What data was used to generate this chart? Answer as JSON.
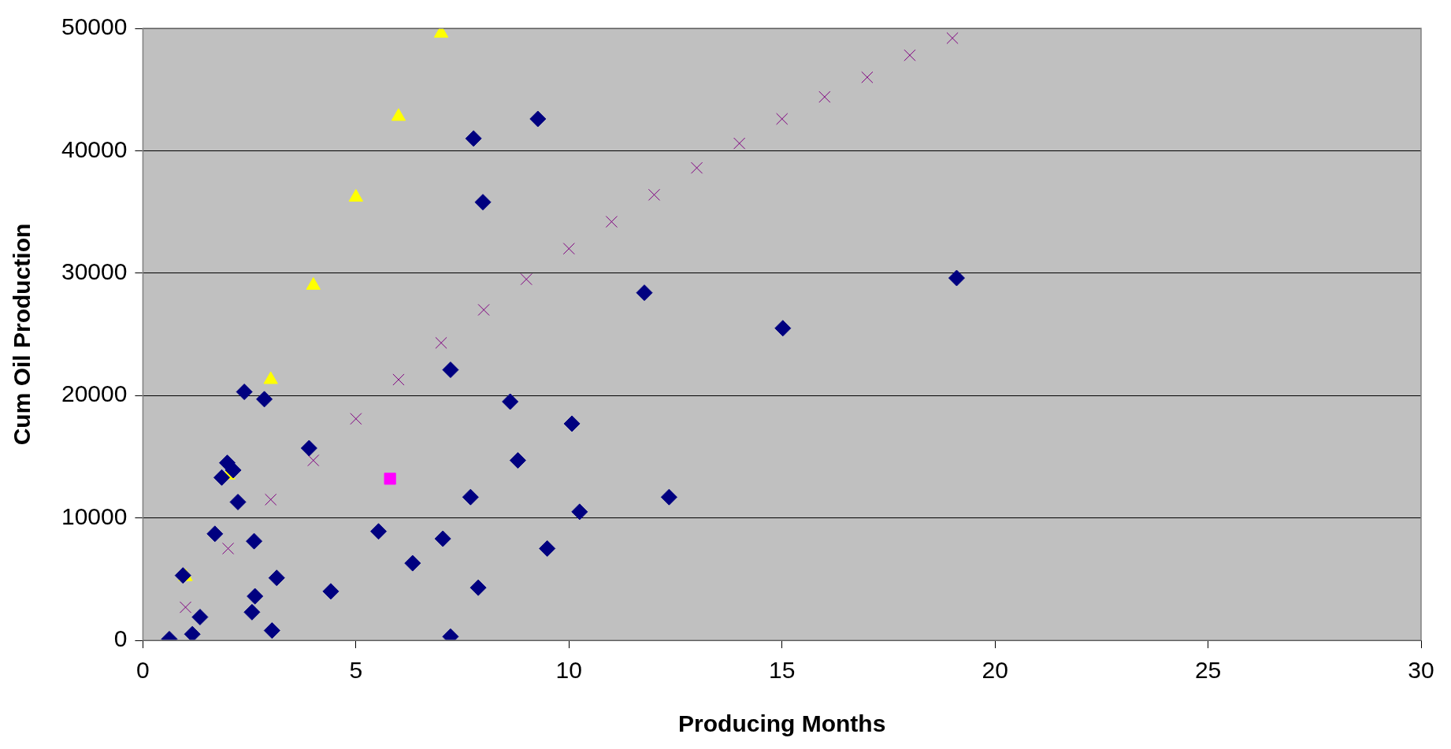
{
  "chart_data": {
    "type": "scatter",
    "xlabel": "Producing Months",
    "ylabel": "Cum Oil Production",
    "xlim": [
      0,
      30
    ],
    "xticks": [
      0,
      5,
      10,
      15,
      20,
      25,
      30
    ],
    "ylim": [
      0,
      50000
    ],
    "yticks": [
      0,
      10000,
      20000,
      30000,
      40000,
      50000
    ],
    "grid": "y",
    "legend": false,
    "series": [
      {
        "color": "#000080",
        "marker": "diamond",
        "x": [
          0.62,
          0.94,
          1.16,
          1.34,
          1.69,
          1.85,
          1.98,
          2.12,
          2.23,
          2.38,
          2.56,
          2.61,
          2.63,
          2.85,
          3.03,
          3.14,
          3.9,
          4.41,
          5.53,
          6.33,
          7.04,
          7.22,
          7.22,
          7.69,
          7.76,
          7.87,
          7.98,
          8.62,
          8.8,
          9.27,
          9.49,
          10.07,
          10.25,
          11.77,
          12.35,
          15.02,
          19.1
        ],
        "values": [
          100,
          5300,
          500,
          1900,
          8700,
          13300,
          14500,
          13900,
          11300,
          20300,
          2300,
          8100,
          3600,
          19700,
          800,
          5100,
          15700,
          4000,
          8900,
          6300,
          8300,
          22100,
          300,
          11700,
          41000,
          4300,
          35800,
          19500,
          14700,
          42600,
          7500,
          17700,
          10500,
          28400,
          11700,
          25500,
          29600
        ]
      },
      {
        "color": "#ffff00",
        "marker": "triangle",
        "x": [
          1,
          2,
          3,
          4,
          5,
          6,
          7
        ],
        "values": [
          5200,
          13500,
          21300,
          29000,
          36200,
          42800,
          49600
        ]
      },
      {
        "color": "#800080",
        "marker": "cross",
        "x": [
          1,
          2,
          3,
          4,
          5,
          6,
          7,
          8,
          9,
          10,
          11,
          12,
          13,
          14,
          15,
          16,
          17,
          18,
          19
        ],
        "values": [
          2700,
          7500,
          11500,
          14700,
          18100,
          21300,
          24300,
          27000,
          29500,
          32000,
          34200,
          36400,
          38600,
          40600,
          42600,
          44400,
          46000,
          47800,
          49200
        ]
      },
      {
        "color": "#ff00ff",
        "marker": "square",
        "x": [
          5.8
        ],
        "values": [
          13200
        ]
      }
    ]
  }
}
